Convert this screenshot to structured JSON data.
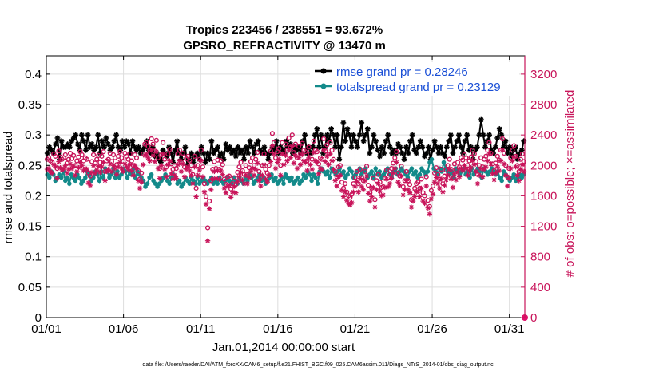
{
  "chart_data": {
    "type": "line",
    "title_line1": "Tropics 223456 / 238551 = 93.672%",
    "title_line2": "GPSRO_REFRACTIVITY @ 13470 m",
    "xlabel": "Jan.01,2014 00:00:00 start",
    "ylabel_left": "rmse and totalspread",
    "ylabel_right": "# of obs: o=possible; ×=assimilated",
    "xlim": [
      0,
      31
    ],
    "ylim_left": [
      0,
      0.43
    ],
    "ylim_right": [
      0,
      3440
    ],
    "x_ticks": [
      {
        "x": 0,
        "label": "01/01"
      },
      {
        "x": 5,
        "label": "01/06"
      },
      {
        "x": 10,
        "label": "01/11"
      },
      {
        "x": 15,
        "label": "01/16"
      },
      {
        "x": 20,
        "label": "01/21"
      },
      {
        "x": 25,
        "label": "01/26"
      },
      {
        "x": 30,
        "label": "01/31"
      }
    ],
    "yticks_left": [
      {
        "v": 0,
        "label": "0"
      },
      {
        "v": 0.05,
        "label": "0.05"
      },
      {
        "v": 0.1,
        "label": "0.1"
      },
      {
        "v": 0.15,
        "label": "0.15"
      },
      {
        "v": 0.2,
        "label": "0.2"
      },
      {
        "v": 0.25,
        "label": "0.25"
      },
      {
        "v": 0.3,
        "label": "0.3"
      },
      {
        "v": 0.35,
        "label": "0.35"
      },
      {
        "v": 0.4,
        "label": "0.4"
      }
    ],
    "yticks_right": [
      {
        "v": 0,
        "label": "0"
      },
      {
        "v": 400,
        "label": "400"
      },
      {
        "v": 800,
        "label": "800"
      },
      {
        "v": 1200,
        "label": "1200"
      },
      {
        "v": 1600,
        "label": "1600"
      },
      {
        "v": 2000,
        "label": "2000"
      },
      {
        "v": 2400,
        "label": "2400"
      },
      {
        "v": 2800,
        "label": "2800"
      },
      {
        "v": 3200,
        "label": "3200"
      }
    ],
    "legend": [
      {
        "name": "rmse grand pr = 0.28246",
        "color": "#000000"
      },
      {
        "name": "totalspread grand pr = 0.23129",
        "color": "#138a8a"
      }
    ],
    "series": [
      {
        "name": "rmse",
        "axis": "left",
        "color": "#000000",
        "marker": "star",
        "values": [
          0.27,
          0.28,
          0.275,
          0.27,
          0.285,
          0.295,
          0.26,
          0.29,
          0.28,
          0.28,
          0.285,
          0.28,
          0.29,
          0.295,
          0.3,
          0.285,
          0.275,
          0.3,
          0.29,
          0.275,
          0.3,
          0.28,
          0.285,
          0.275,
          0.28,
          0.3,
          0.27,
          0.29,
          0.28,
          0.295,
          0.285,
          0.275,
          0.28,
          0.29,
          0.3,
          0.28,
          0.275,
          0.29,
          0.28,
          0.29,
          0.285,
          0.27,
          0.29,
          0.28,
          0.275,
          0.28,
          0.27,
          0.275,
          0.28,
          0.29,
          0.275,
          0.27,
          0.28,
          0.265,
          0.27,
          0.26,
          0.255,
          0.275,
          0.27,
          0.265,
          0.28,
          0.27,
          0.255,
          0.275,
          0.29,
          0.27,
          0.26,
          0.27,
          0.28,
          0.25,
          0.26,
          0.27,
          0.255,
          0.265,
          0.27,
          0.26,
          0.28,
          0.27,
          0.255,
          0.27,
          0.26,
          0.29,
          0.27,
          0.275,
          0.28,
          0.265,
          0.27,
          0.26,
          0.285,
          0.275,
          0.28,
          0.27,
          0.275,
          0.265,
          0.28,
          0.27,
          0.275,
          0.26,
          0.28,
          0.27,
          0.29,
          0.28,
          0.27,
          0.285,
          0.29,
          0.275,
          0.27,
          0.28,
          0.27,
          0.26,
          0.27,
          0.28,
          0.275,
          0.29,
          0.27,
          0.28,
          0.275,
          0.27,
          0.29,
          0.28,
          0.285,
          0.27,
          0.28,
          0.275,
          0.28,
          0.27,
          0.29,
          0.3,
          0.27,
          0.28,
          0.27,
          0.28,
          0.3,
          0.31,
          0.28,
          0.3,
          0.27,
          0.28,
          0.3,
          0.29,
          0.31,
          0.3,
          0.28,
          0.3,
          0.26,
          0.28,
          0.32,
          0.29,
          0.31,
          0.3,
          0.28,
          0.3,
          0.29,
          0.28,
          0.3,
          0.32,
          0.29,
          0.3,
          0.31,
          0.27,
          0.28,
          0.3,
          0.29,
          0.275,
          0.265,
          0.28,
          0.27,
          0.29,
          0.3,
          0.28,
          0.27,
          0.275,
          0.27,
          0.285,
          0.28,
          0.27,
          0.26,
          0.28,
          0.27,
          0.29,
          0.3,
          0.275,
          0.27,
          0.28,
          0.29,
          0.28,
          0.265,
          0.27,
          0.28,
          0.26,
          0.275,
          0.29,
          0.28,
          0.27,
          0.28,
          0.27,
          0.265,
          0.28,
          0.29,
          0.3,
          0.27,
          0.28,
          0.29,
          0.3,
          0.28,
          0.27,
          0.29,
          0.3,
          0.275,
          0.28,
          0.26,
          0.275,
          0.28,
          0.3,
          0.325,
          0.3,
          0.28,
          0.29,
          0.3,
          0.275,
          0.27,
          0.28,
          0.295,
          0.31,
          0.3,
          0.28,
          0.29,
          0.27,
          0.28,
          0.265,
          0.275,
          0.28,
          0.26,
          0.27,
          0.275,
          0.29
        ]
      },
      {
        "name": "totalspread",
        "axis": "left",
        "color": "#138a8a",
        "marker": "dot",
        "values": [
          0.235,
          0.23,
          0.24,
          0.235,
          0.225,
          0.23,
          0.235,
          0.23,
          0.24,
          0.225,
          0.23,
          0.22,
          0.235,
          0.23,
          0.225,
          0.235,
          0.23,
          0.22,
          0.225,
          0.23,
          0.24,
          0.235,
          0.225,
          0.23,
          0.24,
          0.235,
          0.225,
          0.24,
          0.23,
          0.245,
          0.24,
          0.23,
          0.235,
          0.245,
          0.23,
          0.24,
          0.23,
          0.235,
          0.245,
          0.24,
          0.23,
          0.24,
          0.235,
          0.245,
          0.23,
          0.24,
          0.235,
          0.23,
          0.225,
          0.215,
          0.22,
          0.23,
          0.235,
          0.225,
          0.22,
          0.215,
          0.22,
          0.225,
          0.23,
          0.235,
          0.225,
          0.22,
          0.23,
          0.235,
          0.23,
          0.22,
          0.225,
          0.215,
          0.22,
          0.23,
          0.225,
          0.22,
          0.23,
          0.225,
          0.22,
          0.23,
          0.22,
          0.225,
          0.23,
          0.225,
          0.22,
          0.225,
          0.23,
          0.22,
          0.225,
          0.22,
          0.23,
          0.225,
          0.22,
          0.225,
          0.23,
          0.225,
          0.22,
          0.23,
          0.225,
          0.22,
          0.23,
          0.225,
          0.22,
          0.23,
          0.225,
          0.235,
          0.23,
          0.22,
          0.225,
          0.23,
          0.235,
          0.225,
          0.23,
          0.22,
          0.225,
          0.23,
          0.235,
          0.225,
          0.23,
          0.22,
          0.225,
          0.23,
          0.22,
          0.235,
          0.23,
          0.225,
          0.23,
          0.22,
          0.225,
          0.23,
          0.22,
          0.225,
          0.235,
          0.23,
          0.24,
          0.235,
          0.225,
          0.235,
          0.23,
          0.22,
          0.24,
          0.245,
          0.24,
          0.235,
          0.24,
          0.23,
          0.245,
          0.24,
          0.235,
          0.24,
          0.245,
          0.235,
          0.24,
          0.23,
          0.235,
          0.245,
          0.24,
          0.23,
          0.235,
          0.24,
          0.245,
          0.235,
          0.24,
          0.245,
          0.23,
          0.235,
          0.24,
          0.23,
          0.245,
          0.235,
          0.24,
          0.23,
          0.235,
          0.24,
          0.245,
          0.235,
          0.23,
          0.24,
          0.245,
          0.235,
          0.24,
          0.245,
          0.24,
          0.235,
          0.23,
          0.24,
          0.245,
          0.235,
          0.24,
          0.23,
          0.235,
          0.245,
          0.24,
          0.235,
          0.24,
          0.255,
          0.26,
          0.245,
          0.24,
          0.235,
          0.245,
          0.24,
          0.255,
          0.245,
          0.24,
          0.235,
          0.24,
          0.23,
          0.245,
          0.24,
          0.235,
          0.24,
          0.245,
          0.235,
          0.24,
          0.23,
          0.245,
          0.235,
          0.24,
          0.245,
          0.24,
          0.23,
          0.245,
          0.24,
          0.235,
          0.24,
          0.245,
          0.24,
          0.235,
          0.24,
          0.23,
          0.225,
          0.24,
          0.235,
          0.23,
          0.225,
          0.23,
          0.235,
          0.225,
          0.23,
          0.235,
          0.23,
          0.235
        ]
      },
      {
        "name": "# obs possible",
        "axis": "right",
        "color": "#c8145a",
        "marker": "circle",
        "values": [
          2080,
          2100,
          2060,
          2040,
          2150,
          2120,
          1960,
          2190,
          2110,
          2080,
          2100,
          2140,
          2030,
          2080,
          2160,
          2090,
          2130,
          2000,
          2060,
          2110,
          2180,
          2140,
          2060,
          2100,
          2080,
          1900,
          1860,
          2050,
          2140,
          2030,
          2080,
          2130,
          2040,
          2120,
          2180,
          1920,
          2060,
          2080,
          2160,
          2050,
          2140,
          2100,
          2010,
          2120,
          2180,
          2100,
          2050,
          2160,
          2120,
          2080,
          2150,
          2060,
          2000,
          2140,
          2100,
          1930,
          1820,
          1900,
          2150,
          2280,
          2300,
          2250,
          2200,
          2350,
          2280,
          2190,
          2330,
          2100,
          1960,
          2140,
          2300,
          2080,
          1980,
          2150,
          2210,
          2020,
          1950,
          2000,
          1960,
          2150,
          2200,
          2050,
          2160,
          1980,
          2090,
          2120,
          2060,
          2000,
          1880,
          2120,
          1700,
          2000,
          2080,
          2200,
          1980,
          1760,
          1590,
          1180,
          1530,
          1800,
          1950,
          2050,
          1960,
          2070,
          1950,
          2060,
          2010,
          1820,
          1750,
          1850,
          1860,
          1690,
          1760,
          1840,
          1750,
          1910,
          1980,
          2040,
          1930,
          1880,
          2000,
          1880,
          1970,
          2050,
          2100,
          2000,
          2080,
          2170,
          1920,
          1850,
          2000,
          2150,
          1950,
          1900,
          2000,
          2190,
          2420,
          2300,
          2100,
          2180,
          2220,
          2000,
          2300,
          2150,
          2280,
          2200,
          2360,
          2240,
          2400,
          2170,
          2280,
          2100,
          2250,
          2150,
          2290,
          2200,
          2180,
          2060,
          2240,
          2150,
          2080,
          2320,
          2200,
          2180,
          2020,
          2100,
          2080,
          2350,
          2190,
          2270,
          2150,
          2300,
          2200,
          2080,
          1920,
          1850,
          1980,
          2000,
          1780,
          1700,
          1760,
          1650,
          1600,
          1580,
          1620,
          1760,
          1840,
          1920,
          1760,
          1950,
          1840,
          1800,
          1920,
          1990,
          1740,
          1640,
          1700,
          1830,
          1550,
          1800,
          1880,
          1780,
          1710,
          1720,
          1830,
          1940,
          1840,
          1880,
          1960,
          2030,
          2100,
          2180,
          1900,
          1860,
          1990,
          1720,
          1800,
          1920,
          1800,
          1750,
          1550,
          1640,
          1700,
          1760,
          1780,
          1700,
          1820,
          1640,
          1600,
          1850,
          1540,
          1460,
          1670,
          1730,
          1900,
          1970,
          1880,
          1820,
          1950,
          1760,
          1860,
          1940,
          2000,
          2080,
          1950,
          1830,
          2020,
          1940,
          2040,
          1980,
          2100,
          2070,
          2140,
          2100,
          2000,
          2060,
          2110,
          2200,
          2150,
          2050,
          1880,
          2000,
          2100,
          1980,
          2080,
          2120,
          2200,
          2300,
          2160,
          2020,
          1930,
          2030,
          2120,
          2070,
          2200,
          2350,
          2160,
          2000,
          1850,
          1960,
          2100,
          2200,
          2260,
          2120,
          2000,
          1920,
          2080,
          2150,
          2050
        ]
      },
      {
        "name": "# obs assimilated",
        "axis": "right",
        "color": "#c8145a",
        "marker": "asterisk",
        "values": [
          1950,
          1960,
          1920,
          1900,
          2010,
          1980,
          1830,
          2050,
          1970,
          1940,
          1960,
          2000,
          1900,
          1950,
          2020,
          1960,
          1990,
          1870,
          1920,
          1970,
          2040,
          2000,
          1930,
          1960,
          1950,
          1770,
          1740,
          1910,
          2000,
          1900,
          1940,
          1990,
          1910,
          1980,
          2040,
          1800,
          1920,
          1950,
          2020,
          1920,
          2000,
          1960,
          1880,
          1980,
          2040,
          1960,
          1920,
          2020,
          1980,
          1950,
          2010,
          1930,
          1870,
          2000,
          1960,
          1800,
          1700,
          1780,
          2010,
          2130,
          2150,
          2100,
          2060,
          2200,
          2130,
          2050,
          2180,
          1960,
          1830,
          2000,
          2150,
          1950,
          1850,
          2010,
          2060,
          1890,
          1820,
          1870,
          1830,
          2010,
          2060,
          1920,
          2020,
          1850,
          1950,
          1980,
          1930,
          1870,
          1760,
          1980,
          1590,
          1870,
          1940,
          2060,
          1850,
          1650,
          1490,
          1010,
          1430,
          1680,
          1820,
          1920,
          1830,
          1930,
          1820,
          1930,
          1880,
          1700,
          1640,
          1730,
          1740,
          1580,
          1650,
          1720,
          1640,
          1790,
          1850,
          1910,
          1810,
          1760,
          1870,
          1760,
          1840,
          1920,
          1960,
          1870,
          1950,
          2030,
          1800,
          1730,
          1870,
          2010,
          1820,
          1780,
          1870,
          2050,
          2260,
          2150,
          1960,
          2040,
          2080,
          1870,
          2150,
          2010,
          2130,
          2060,
          2200,
          2100,
          2250,
          2030,
          2130,
          1960,
          2100,
          2010,
          2140,
          2060,
          2040,
          1930,
          2100,
          2010,
          1950,
          2170,
          2060,
          2040,
          1890,
          1960,
          1950,
          2200,
          2050,
          2120,
          2010,
          2150,
          2060,
          1950,
          1800,
          1730,
          1850,
          1870,
          1670,
          1590,
          1650,
          1540,
          1500,
          1480,
          1510,
          1650,
          1720,
          1790,
          1650,
          1830,
          1720,
          1680,
          1800,
          1860,
          1630,
          1530,
          1590,
          1710,
          1450,
          1680,
          1760,
          1660,
          1600,
          1610,
          1710,
          1820,
          1720,
          1760,
          1830,
          1900,
          1960,
          2040,
          1780,
          1740,
          1860,
          1610,
          1680,
          1800,
          1680,
          1640,
          1450,
          1530,
          1590,
          1650,
          1660,
          1590,
          1700,
          1530,
          1500,
          1730,
          1440,
          1360,
          1560,
          1620,
          1780,
          1840,
          1760,
          1700,
          1820,
          1650,
          1740,
          1810,
          1870,
          1950,
          1820,
          1710,
          1890,
          1810,
          1910,
          1850,
          1960,
          1930,
          2000,
          1960,
          1870,
          1930,
          1970,
          2060,
          2010,
          1920,
          1760,
          1870,
          1960,
          1850,
          1950,
          1980,
          2060,
          2150,
          2020,
          1890,
          1810,
          1900,
          1980,
          1930,
          2060,
          2200,
          2020,
          1870,
          1730,
          1830,
          1960,
          2060,
          2110,
          1980,
          1870,
          1800,
          1950,
          2010,
          1920
        ]
      }
    ]
  },
  "footnote": "data file: /Users/raeder/DAI/ATM_forcXX/CAM6_setup/f.e21.FHIST_BGC.f09_025.CAM6assim.011/Diags_NTrS_2014-01/obs_diag_output.nc"
}
